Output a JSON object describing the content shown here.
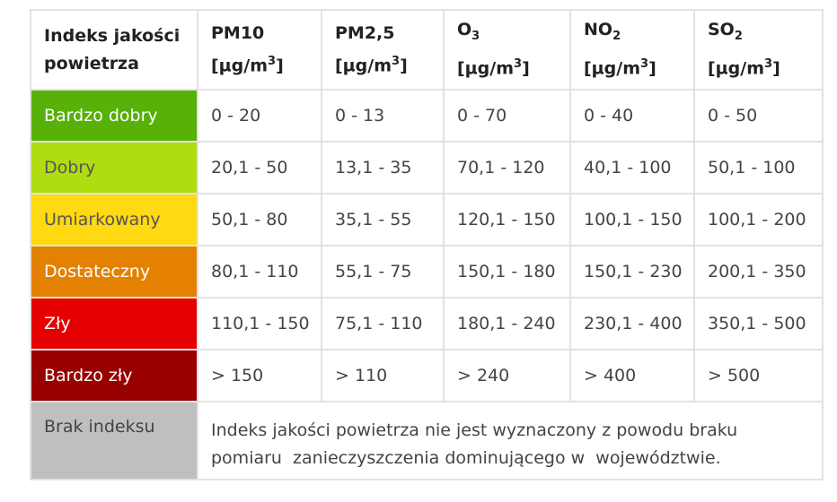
{
  "table": {
    "header": [
      {
        "lines": [
          "Indeks jakości",
          "powietrza"
        ]
      },
      {
        "name": "PM10",
        "unit": "[µg/m",
        "unit_sup": "3",
        "unit_close": "]"
      },
      {
        "name": "PM2,5",
        "unit": "[µg/m",
        "unit_sup": "3",
        "unit_close": "]"
      },
      {
        "name": "O",
        "name_sub": "3",
        "unit": "[µg/m",
        "unit_sup": "3",
        "unit_close": "]"
      },
      {
        "name": "NO",
        "name_sub": "2",
        "unit": "[µg/m",
        "unit_sup": "3",
        "unit_close": "]"
      },
      {
        "name": "SO",
        "name_sub": "2",
        "unit": "[µg/m",
        "unit_sup": "3",
        "unit_close": "]"
      }
    ],
    "rows": [
      [
        "Bardzo dobry",
        "0 - 20",
        "0 - 13",
        "0 - 70",
        "0 - 40",
        "0 - 50"
      ],
      [
        "Dobry",
        "20,1 - 50",
        "13,1 - 35",
        "70,1 - 120",
        "40,1 - 100",
        "50,1 - 100"
      ],
      [
        "Umiarkowany",
        "50,1 - 80",
        "35,1 - 55",
        "120,1 - 150",
        "100,1 - 150",
        "100,1 - 200"
      ],
      [
        "Dostateczny",
        "80,1 - 110",
        "55,1 - 75",
        "150,1 - 180",
        "150,1 - 230",
        "200,1 - 350"
      ],
      [
        "Zły",
        "110,1 - 150",
        "75,1 - 110",
        "180,1 - 240",
        "230,1 - 400",
        "350,1 - 500"
      ],
      [
        "Bardzo zły",
        "> 150",
        "> 110",
        "> 240",
        "> 400",
        "> 500"
      ]
    ],
    "no_index": {
      "label": "Brak indeksu",
      "lines": [
        "Indeks jakości powietrza nie jest wyznaczony z powodu braku",
        "pomiaru  zanieczyszczenia dominującego w  województwie."
      ]
    }
  }
}
